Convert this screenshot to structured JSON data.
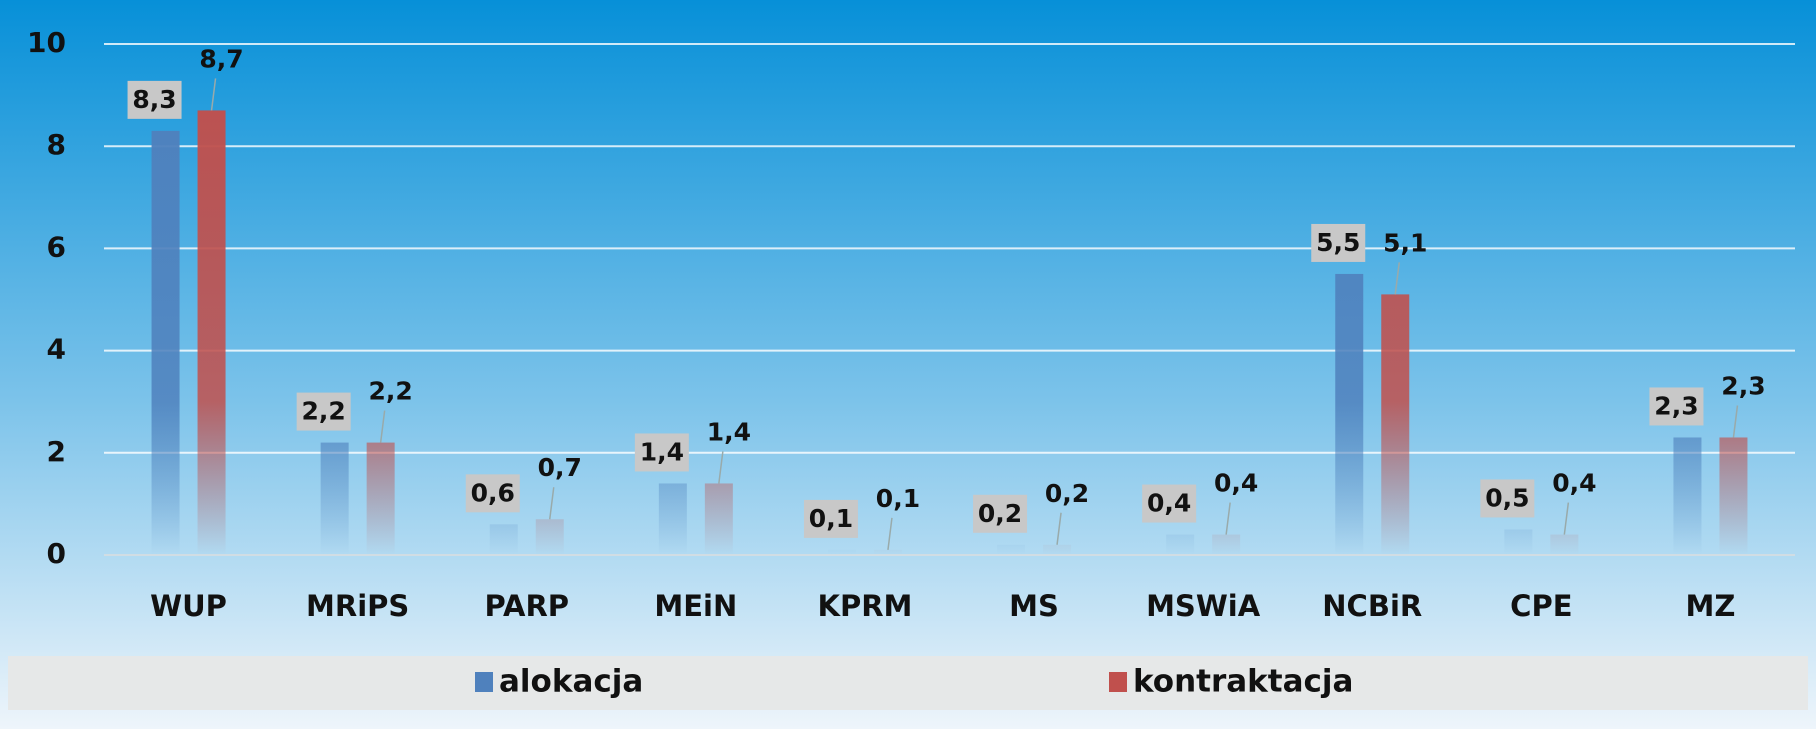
{
  "chart_data": {
    "type": "bar",
    "categories": [
      "WUP",
      "MRiPS",
      "PARP",
      "MEiN",
      "KPRM",
      "MS",
      "MSWiA",
      "NCBiR",
      "CPE",
      "MZ"
    ],
    "series": [
      {
        "name": "alokacja",
        "color": "#4f81bd",
        "values": [
          8.3,
          2.2,
          0.6,
          1.4,
          0.1,
          0.2,
          0.4,
          5.5,
          0.5,
          2.3
        ],
        "value_labels": [
          "8,3",
          "2,2",
          "0,6",
          "1,4",
          "0,1",
          "0,2",
          "0,4",
          "5,5",
          "0,5",
          "2,3"
        ]
      },
      {
        "name": "kontraktacja",
        "color": "#c0504d",
        "values": [
          8.7,
          2.2,
          0.7,
          1.4,
          0.1,
          0.2,
          0.4,
          5.1,
          0.4,
          2.3
        ],
        "value_labels": [
          "8,7",
          "2,2",
          "0,7",
          "1,4",
          "0,1",
          "0,2",
          "0,4",
          "5,1",
          "0,4",
          "2,3"
        ]
      }
    ],
    "ylim": [
      0,
      10
    ],
    "yticks": [
      0,
      2,
      4,
      6,
      8,
      10
    ],
    "grid": true,
    "legend": "bottom"
  }
}
